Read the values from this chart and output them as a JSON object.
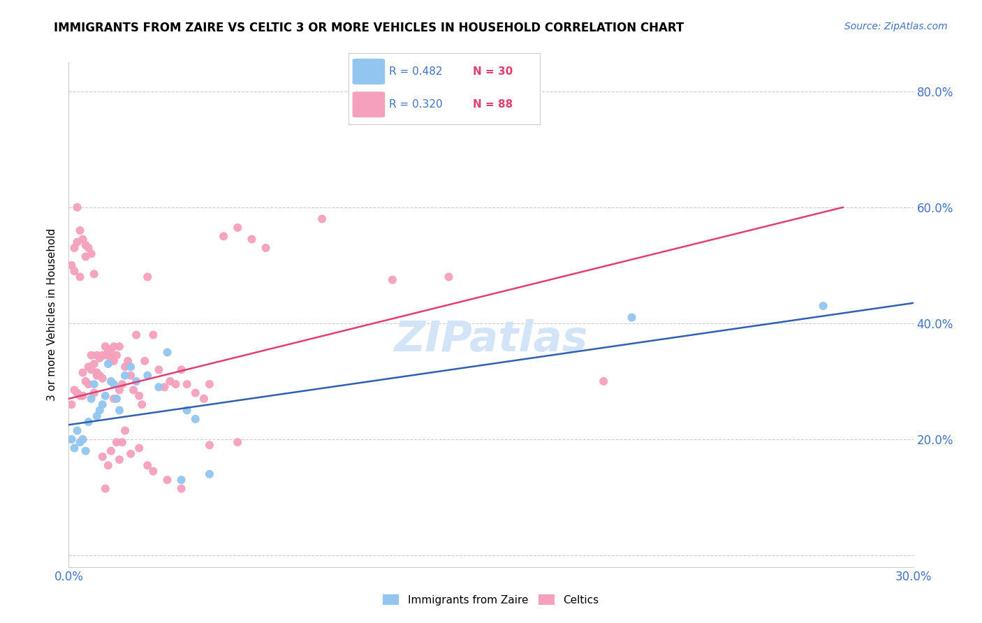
{
  "title": "IMMIGRANTS FROM ZAIRE VS CELTIC 3 OR MORE VEHICLES IN HOUSEHOLD CORRELATION CHART",
  "source": "Source: ZipAtlas.com",
  "ylabel": "3 or more Vehicles in Household",
  "xlim": [
    0.0,
    0.3
  ],
  "ylim": [
    -0.02,
    0.85
  ],
  "blue_color": "#92C5F0",
  "pink_color": "#F5A0BC",
  "blue_line_color": "#3060B0",
  "pink_line_color": "#E04070",
  "watermark_color": "#D4E4F8",
  "legend_blue_R": "R = 0.482",
  "legend_blue_N": "N = 30",
  "legend_pink_R": "R = 0.320",
  "legend_pink_N": "N = 88",
  "blue_line_x0": 0.0,
  "blue_line_y0": 0.225,
  "blue_line_x1": 0.3,
  "blue_line_y1": 0.435,
  "pink_line_x0": 0.0,
  "pink_line_y0": 0.27,
  "pink_line_x1": 0.275,
  "pink_line_y1": 0.6,
  "blue_x": [
    0.001,
    0.002,
    0.003,
    0.004,
    0.005,
    0.006,
    0.007,
    0.008,
    0.009,
    0.01,
    0.011,
    0.012,
    0.013,
    0.014,
    0.015,
    0.016,
    0.017,
    0.018,
    0.02,
    0.022,
    0.024,
    0.028,
    0.032,
    0.035,
    0.04,
    0.042,
    0.045,
    0.05,
    0.2,
    0.268
  ],
  "blue_y": [
    0.2,
    0.185,
    0.215,
    0.195,
    0.2,
    0.18,
    0.23,
    0.27,
    0.295,
    0.24,
    0.25,
    0.26,
    0.275,
    0.33,
    0.3,
    0.295,
    0.27,
    0.25,
    0.31,
    0.325,
    0.3,
    0.31,
    0.29,
    0.35,
    0.13,
    0.25,
    0.235,
    0.14,
    0.41,
    0.43
  ],
  "pink_x": [
    0.001,
    0.001,
    0.002,
    0.002,
    0.003,
    0.003,
    0.004,
    0.004,
    0.005,
    0.005,
    0.006,
    0.006,
    0.007,
    0.007,
    0.008,
    0.008,
    0.009,
    0.009,
    0.01,
    0.01,
    0.011,
    0.012,
    0.012,
    0.013,
    0.013,
    0.014,
    0.015,
    0.015,
    0.016,
    0.016,
    0.017,
    0.018,
    0.018,
    0.019,
    0.02,
    0.021,
    0.022,
    0.023,
    0.024,
    0.025,
    0.026,
    0.027,
    0.028,
    0.03,
    0.032,
    0.034,
    0.036,
    0.038,
    0.04,
    0.042,
    0.045,
    0.048,
    0.05,
    0.055,
    0.06,
    0.065,
    0.07,
    0.09,
    0.115,
    0.135,
    0.002,
    0.003,
    0.004,
    0.005,
    0.006,
    0.007,
    0.008,
    0.009,
    0.01,
    0.011,
    0.012,
    0.013,
    0.014,
    0.015,
    0.016,
    0.017,
    0.018,
    0.019,
    0.02,
    0.022,
    0.025,
    0.028,
    0.03,
    0.035,
    0.04,
    0.05,
    0.06,
    0.19
  ],
  "pink_y": [
    0.26,
    0.5,
    0.285,
    0.49,
    0.28,
    0.54,
    0.275,
    0.48,
    0.275,
    0.315,
    0.3,
    0.515,
    0.295,
    0.325,
    0.32,
    0.345,
    0.33,
    0.28,
    0.315,
    0.345,
    0.31,
    0.305,
    0.345,
    0.345,
    0.36,
    0.355,
    0.35,
    0.34,
    0.335,
    0.36,
    0.345,
    0.36,
    0.285,
    0.295,
    0.325,
    0.335,
    0.31,
    0.285,
    0.38,
    0.275,
    0.26,
    0.335,
    0.48,
    0.38,
    0.32,
    0.29,
    0.3,
    0.295,
    0.32,
    0.295,
    0.28,
    0.27,
    0.295,
    0.55,
    0.565,
    0.545,
    0.53,
    0.58,
    0.475,
    0.48,
    0.53,
    0.6,
    0.56,
    0.545,
    0.535,
    0.53,
    0.52,
    0.485,
    0.31,
    0.34,
    0.17,
    0.115,
    0.155,
    0.18,
    0.27,
    0.195,
    0.165,
    0.195,
    0.215,
    0.175,
    0.185,
    0.155,
    0.145,
    0.13,
    0.115,
    0.19,
    0.195,
    0.3
  ]
}
